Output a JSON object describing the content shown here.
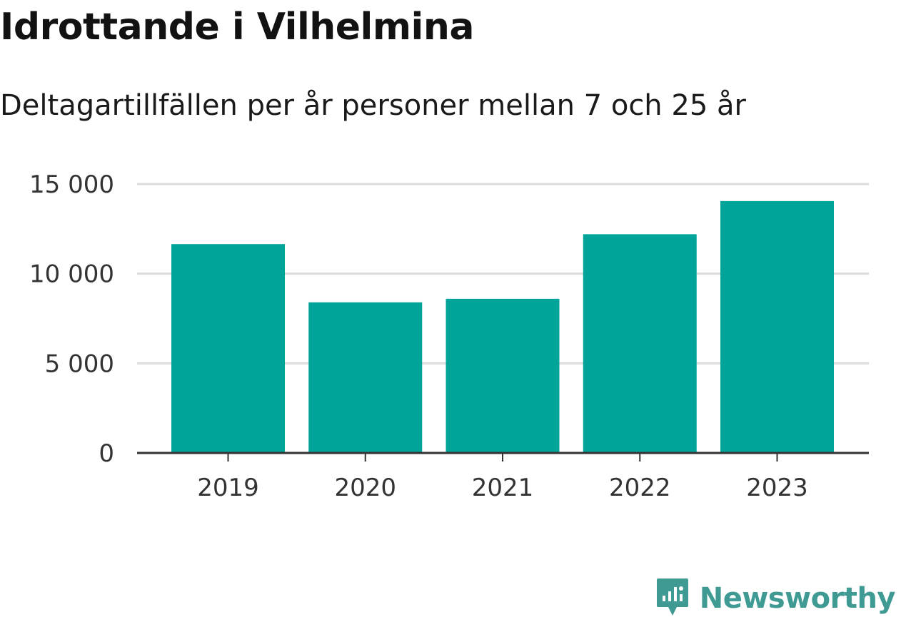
{
  "header": {
    "title": "Idrottande i Vilhelmina",
    "subtitle": "Deltagartillfällen per år personer mellan 7 och 25 år"
  },
  "chart_data": {
    "type": "bar",
    "title": "Idrottande i Vilhelmina",
    "subtitle": "Deltagartillfällen per år personer mellan 7 och 25 år",
    "xlabel": "",
    "ylabel": "",
    "categories": [
      "2019",
      "2020",
      "2021",
      "2022",
      "2023"
    ],
    "values": [
      11650,
      8400,
      8600,
      12200,
      14050
    ],
    "ylim": [
      0,
      15000
    ],
    "yticks": [
      0,
      5000,
      10000,
      15000
    ],
    "ytick_labels": [
      "0",
      "5 000",
      "10 000",
      "15 000"
    ],
    "grid": true,
    "bar_color": "#00a499",
    "grid_color": "#dcdcdc",
    "axis_color": "#333333"
  },
  "branding": {
    "logo_text": "Newsworthy",
    "logo_icon": "newsworthy-chart-bubble-icon",
    "logo_color": "#3f9a94"
  }
}
